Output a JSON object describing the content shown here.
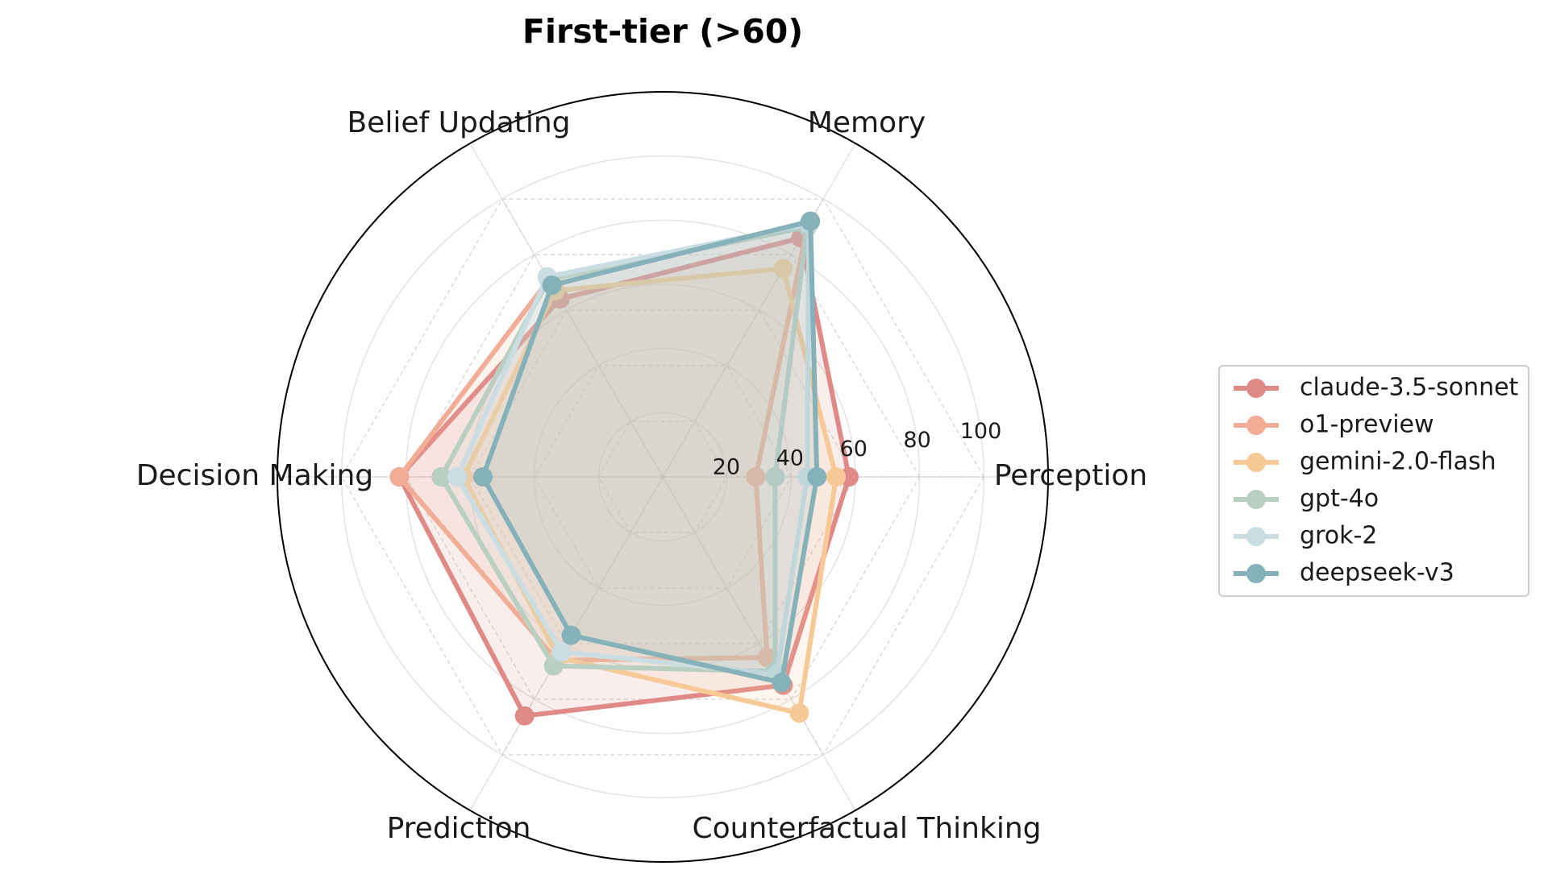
{
  "chart_data": {
    "type": "radar",
    "title": "First-tier (>60)",
    "axes": [
      "Perception",
      "Memory",
      "Belief Updating",
      "Decision Making",
      "Prediction",
      "Counterfactual Thinking"
    ],
    "rticks": [
      20,
      40,
      60,
      80,
      100
    ],
    "rlim": [
      0,
      120
    ],
    "grid": true,
    "legend_position": "right",
    "series": [
      {
        "name": "claude-3.5-sonnet",
        "color": "#e08a88",
        "values": [
          58,
          86,
          64,
          82,
          86,
          75
        ]
      },
      {
        "name": "o1-preview",
        "color": "#f2ad96",
        "values": [
          29,
          90,
          71,
          82,
          66,
          65
        ]
      },
      {
        "name": "gemini-2.0-flash",
        "color": "#f7c996",
        "values": [
          54,
          75,
          67,
          62,
          65,
          85
        ]
      },
      {
        "name": "gpt-4o",
        "color": "#b9cfc2",
        "values": [
          35,
          90,
          71,
          69,
          68,
          70
        ]
      },
      {
        "name": "grok-2",
        "color": "#c9dde2",
        "values": [
          45,
          91,
          72,
          64,
          63,
          71
        ]
      },
      {
        "name": "deepseek-v3",
        "color": "#85b1b8",
        "values": [
          48,
          92,
          69,
          56,
          57,
          74
        ]
      }
    ]
  }
}
